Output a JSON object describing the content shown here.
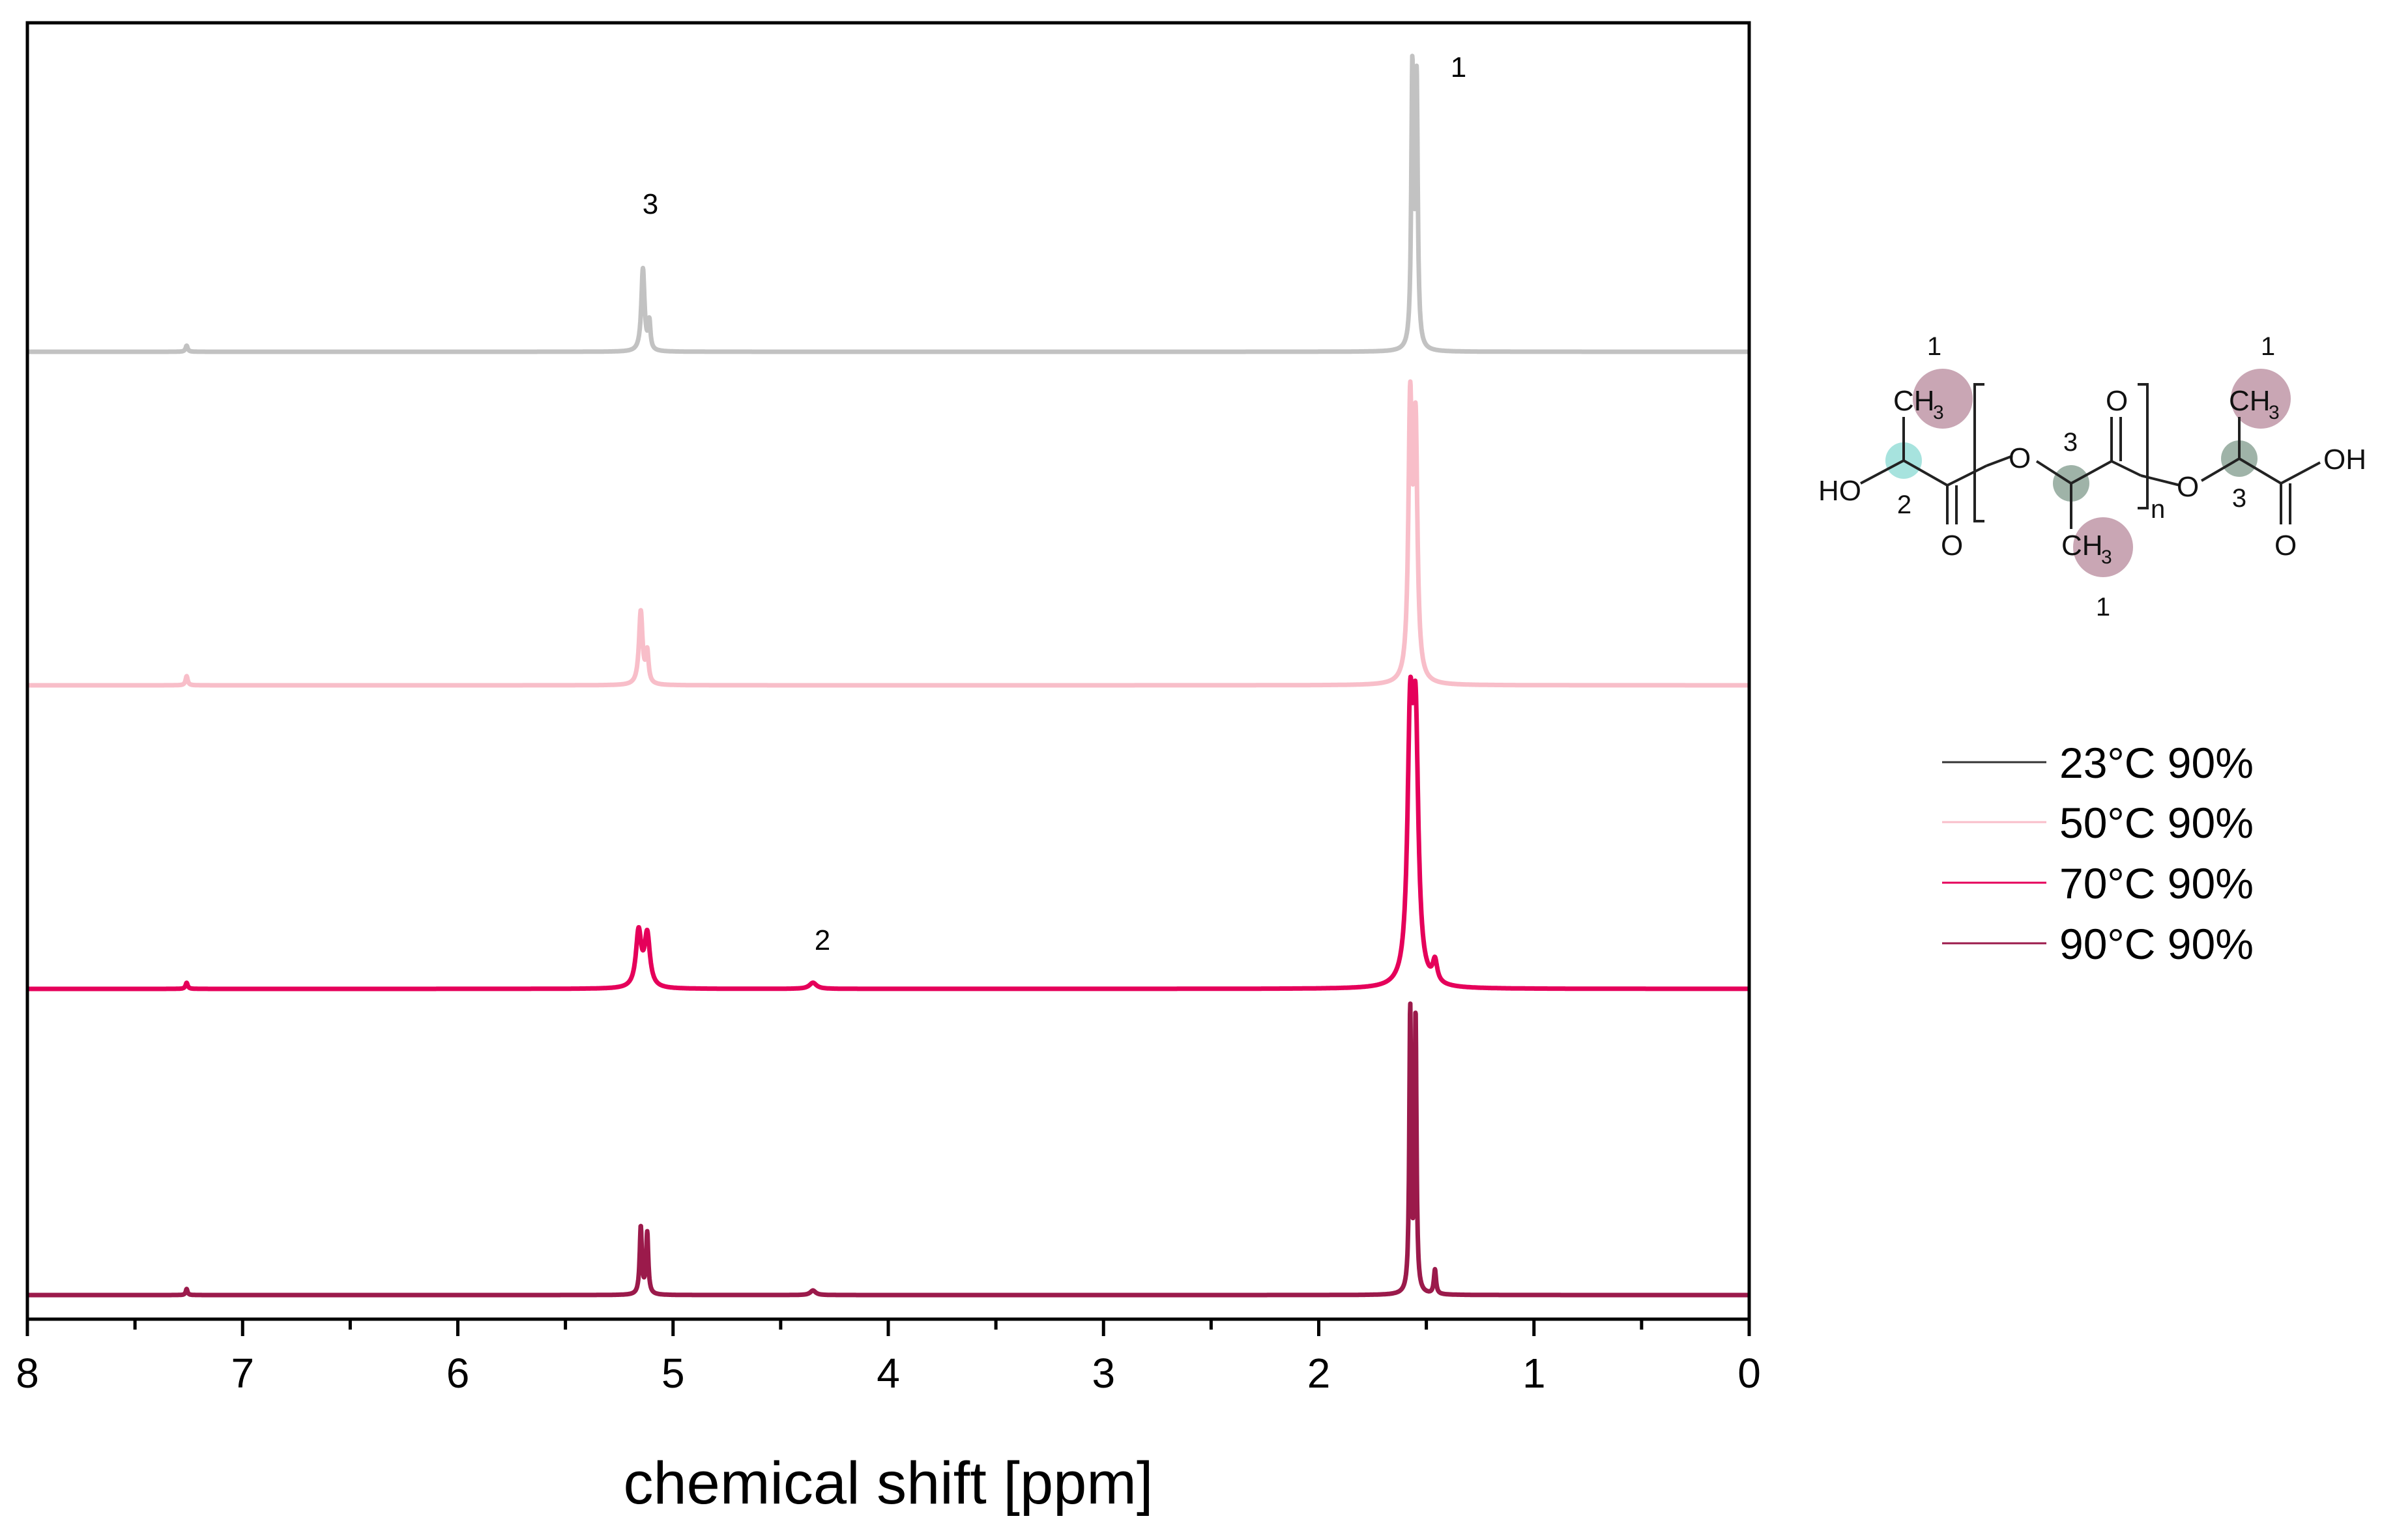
{
  "chart_data": {
    "type": "line",
    "xlabel": "chemical shift [ppm]",
    "ylabel": "",
    "title": "",
    "xlim": [
      8,
      0
    ],
    "x_reversed": true,
    "x_ticks": [
      8,
      7,
      6,
      5,
      4,
      3,
      2,
      1,
      0
    ],
    "x_tick_labels": [
      "8",
      "7",
      "6",
      "5",
      "4",
      "3",
      "2",
      "1",
      "0"
    ],
    "grid": false,
    "legend_position": "right",
    "series": [
      {
        "name": "23°C 90%",
        "color": "#c2c2c2",
        "peaks": [
          {
            "ppm": 7.26,
            "height": 0.02,
            "width": 0.012
          },
          {
            "ppm": 5.14,
            "height": 0.27,
            "width": 0.018
          },
          {
            "ppm": 5.11,
            "height": 0.09,
            "width": 0.012
          },
          {
            "ppm": 1.565,
            "height": 0.9,
            "width": 0.012
          },
          {
            "ppm": 1.545,
            "height": 0.86,
            "width": 0.012
          }
        ]
      },
      {
        "name": "50°C 90%",
        "color": "#f8bec9",
        "peaks": [
          {
            "ppm": 7.26,
            "height": 0.03,
            "width": 0.012
          },
          {
            "ppm": 5.15,
            "height": 0.24,
            "width": 0.02
          },
          {
            "ppm": 5.12,
            "height": 0.1,
            "width": 0.015
          },
          {
            "ppm": 1.575,
            "height": 0.88,
            "width": 0.02
          },
          {
            "ppm": 1.55,
            "height": 0.8,
            "width": 0.02
          }
        ]
      },
      {
        "name": "70°C 90%",
        "color": "#e5005a",
        "peaks": [
          {
            "ppm": 7.26,
            "height": 0.02,
            "width": 0.012
          },
          {
            "ppm": 5.16,
            "height": 0.18,
            "width": 0.03
          },
          {
            "ppm": 5.12,
            "height": 0.17,
            "width": 0.03
          },
          {
            "ppm": 4.35,
            "height": 0.02,
            "width": 0.04
          },
          {
            "ppm": 1.575,
            "height": 0.8,
            "width": 0.03
          },
          {
            "ppm": 1.55,
            "height": 0.78,
            "width": 0.03
          },
          {
            "ppm": 1.46,
            "height": 0.07,
            "width": 0.025
          }
        ]
      },
      {
        "name": "90°C 90%",
        "color": "#9b1a4b",
        "peaks": [
          {
            "ppm": 7.26,
            "height": 0.02,
            "width": 0.01
          },
          {
            "ppm": 5.15,
            "height": 0.22,
            "width": 0.012
          },
          {
            "ppm": 5.12,
            "height": 0.2,
            "width": 0.012
          },
          {
            "ppm": 4.35,
            "height": 0.015,
            "width": 0.03
          },
          {
            "ppm": 1.575,
            "height": 0.92,
            "width": 0.01
          },
          {
            "ppm": 1.55,
            "height": 0.9,
            "width": 0.01
          },
          {
            "ppm": 1.46,
            "height": 0.08,
            "width": 0.012
          }
        ]
      }
    ],
    "annotations": [
      {
        "text": "1",
        "series": 0,
        "ppm": 1.43
      },
      {
        "text": "3",
        "series": 0,
        "ppm": 5.12
      },
      {
        "text": "2",
        "series": 2,
        "ppm": 4.33
      }
    ]
  },
  "molecule": {
    "labels": {
      "ho": "HO",
      "oh": "OH",
      "o": "O",
      "ch": "CH",
      "sub3": "3",
      "n": "n",
      "num1": "1",
      "num2": "2",
      "num3": "3"
    },
    "colors": {
      "ch3_highlight": "#c9a6b4",
      "c2_highlight": "#a7e3de",
      "c3_highlight": "#9fb3a8"
    }
  }
}
